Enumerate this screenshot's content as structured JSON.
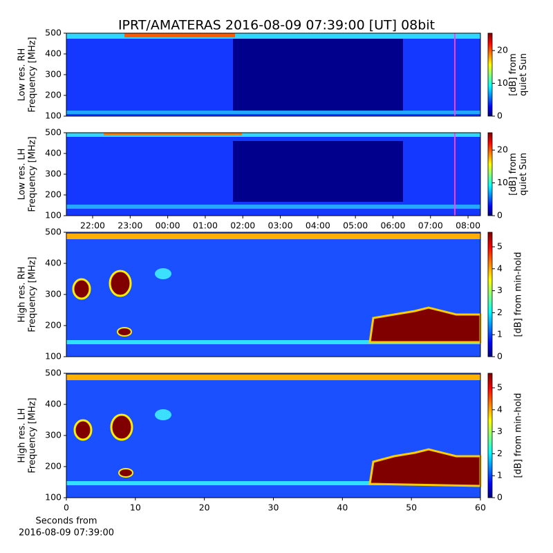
{
  "title": "IPRT/AMATERAS 2016-08-09 07:39:00 [UT]   08bit",
  "chart_data": [
    {
      "type": "spectrogram",
      "ylabel": [
        "Low res. RH",
        "Frequency [MHz]"
      ],
      "ylim": [
        100,
        500
      ],
      "yticks": [
        100,
        200,
        300,
        400,
        500
      ],
      "colorbar": {
        "label": [
          "[dB] from",
          "quiet Sun"
        ],
        "lim": [
          0,
          25.3
        ],
        "ticks": [
          0,
          10,
          20
        ]
      }
    },
    {
      "type": "spectrogram",
      "ylabel": [
        "Low res. LH",
        "Frequency [MHz]"
      ],
      "ylim": [
        100,
        500
      ],
      "yticks": [
        100,
        200,
        300,
        400,
        500
      ],
      "xlim": [
        21.3,
        32.33
      ],
      "xticks": [
        {
          "value": 22,
          "label": "22:00"
        },
        {
          "value": 23,
          "label": "23:00"
        },
        {
          "value": 24,
          "label": "00:00"
        },
        {
          "value": 25,
          "label": "01:00"
        },
        {
          "value": 26,
          "label": "02:00"
        },
        {
          "value": 27,
          "label": "03:00"
        },
        {
          "value": 28,
          "label": "04:00"
        },
        {
          "value": 29,
          "label": "05:00"
        },
        {
          "value": 30,
          "label": "06:00"
        },
        {
          "value": 31,
          "label": "07:00"
        },
        {
          "value": 32,
          "label": "08:00"
        }
      ],
      "colorbar": {
        "label": [
          "[dB] from",
          "quiet Sun"
        ],
        "lim": [
          0,
          25.3
        ],
        "ticks": [
          0,
          10,
          20
        ]
      }
    },
    {
      "type": "spectrogram",
      "ylabel": [
        "High res. RH",
        "Frequency [MHz]"
      ],
      "ylim": [
        100,
        500
      ],
      "yticks": [
        100,
        200,
        300,
        400,
        500
      ],
      "colorbar": {
        "label": [
          "[dB] from min-hold"
        ],
        "lim": [
          0,
          5.66
        ],
        "ticks": [
          0,
          1,
          2,
          3,
          4,
          5
        ]
      }
    },
    {
      "type": "spectrogram",
      "ylabel": [
        "High res. LH",
        "Frequency [MHz]"
      ],
      "ylim": [
        100,
        500
      ],
      "yticks": [
        100,
        200,
        300,
        400,
        500
      ],
      "xlim": [
        0,
        60
      ],
      "xticks": [
        0,
        10,
        20,
        30,
        40,
        50,
        60
      ],
      "xlabel": [
        "Seconds from",
        "2016-08-09 07:39:00"
      ],
      "colorbar": {
        "label": [
          "[dB] from min-hold"
        ],
        "lim": [
          0,
          5.66
        ],
        "ticks": [
          0,
          1,
          2,
          3,
          4,
          5
        ]
      }
    }
  ]
}
